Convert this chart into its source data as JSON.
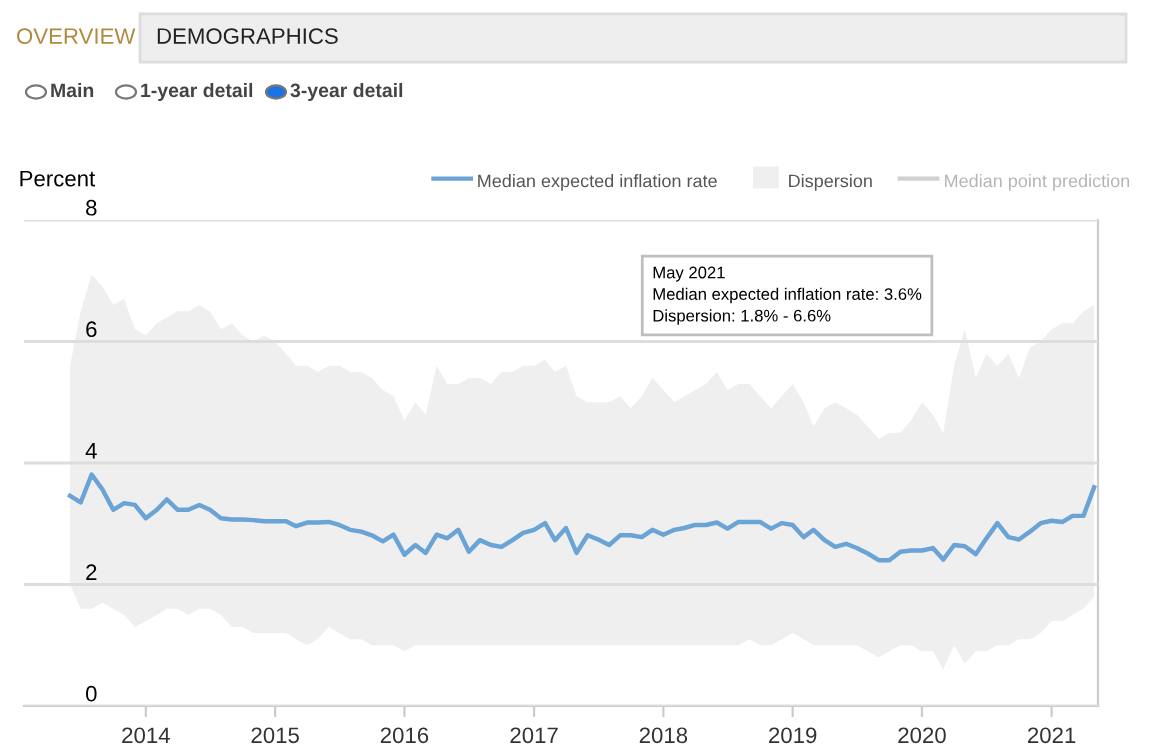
{
  "chart_data": {
    "type": "line",
    "ylabel": "Percent",
    "x": [
      "2013-06",
      "2013-07",
      "2013-08",
      "2013-09",
      "2013-10",
      "2013-11",
      "2013-12",
      "2014-01",
      "2014-02",
      "2014-03",
      "2014-04",
      "2014-05",
      "2014-06",
      "2014-07",
      "2014-08",
      "2014-09",
      "2014-10",
      "2014-11",
      "2014-12",
      "2015-01",
      "2015-02",
      "2015-03",
      "2015-04",
      "2015-05",
      "2015-06",
      "2015-07",
      "2015-08",
      "2015-09",
      "2015-10",
      "2015-11",
      "2015-12",
      "2016-01",
      "2016-02",
      "2016-03",
      "2016-04",
      "2016-05",
      "2016-06",
      "2016-07",
      "2016-08",
      "2016-09",
      "2016-10",
      "2016-11",
      "2016-12",
      "2017-01",
      "2017-02",
      "2017-03",
      "2017-04",
      "2017-05",
      "2017-06",
      "2017-07",
      "2017-08",
      "2017-09",
      "2017-10",
      "2017-11",
      "2017-12",
      "2018-01",
      "2018-02",
      "2018-03",
      "2018-04",
      "2018-05",
      "2018-06",
      "2018-07",
      "2018-08",
      "2018-09",
      "2018-10",
      "2018-11",
      "2018-12",
      "2019-01",
      "2019-02",
      "2019-03",
      "2019-04",
      "2019-05",
      "2019-06",
      "2019-07",
      "2019-08",
      "2019-09",
      "2019-10",
      "2019-11",
      "2019-12",
      "2020-01",
      "2020-02",
      "2020-03",
      "2020-04",
      "2020-05",
      "2020-06",
      "2020-07",
      "2020-08",
      "2020-09",
      "2020-10",
      "2020-11",
      "2020-12",
      "2021-01",
      "2021-02",
      "2021-03",
      "2021-04",
      "2021-05"
    ],
    "series": [
      {
        "name": "Median expected inflation rate",
        "color": "#6aa3d5",
        "lower": [
          2.0,
          1.6,
          1.6,
          1.7,
          1.6,
          1.5,
          1.3,
          1.4,
          1.5,
          1.6,
          1.6,
          1.5,
          1.6,
          1.6,
          1.5,
          1.3,
          1.3,
          1.2,
          1.2,
          1.2,
          1.2,
          1.1,
          1.0,
          1.1,
          1.3,
          1.2,
          1.1,
          1.1,
          1.0,
          1.0,
          1.0,
          0.9,
          1.0,
          1.0,
          1.0,
          1.0,
          1.0,
          1.0,
          1.0,
          1.0,
          1.0,
          1.0,
          1.0,
          1.0,
          1.0,
          1.0,
          1.0,
          1.0,
          1.0,
          1.0,
          1.0,
          1.0,
          1.0,
          1.0,
          1.0,
          1.0,
          1.0,
          1.0,
          1.0,
          1.0,
          1.0,
          1.0,
          1.0,
          1.1,
          1.0,
          1.0,
          1.1,
          1.2,
          1.1,
          1.0,
          1.0,
          1.0,
          1.0,
          1.0,
          0.9,
          0.8,
          0.9,
          1.0,
          1.0,
          0.9,
          0.9,
          0.6,
          1.0,
          0.7,
          0.9,
          0.9,
          1.0,
          1.0,
          1.1,
          1.1,
          1.2,
          1.4,
          1.4,
          1.5,
          1.6,
          1.8
        ],
        "upper": [
          5.6,
          6.5,
          7.1,
          6.9,
          6.6,
          6.7,
          6.2,
          6.1,
          6.3,
          6.4,
          6.5,
          6.5,
          6.6,
          6.5,
          6.2,
          6.3,
          6.1,
          6.0,
          6.1,
          6.0,
          5.8,
          5.6,
          5.6,
          5.5,
          5.6,
          5.6,
          5.5,
          5.5,
          5.4,
          5.2,
          5.1,
          4.7,
          5.0,
          4.8,
          5.6,
          5.3,
          5.3,
          5.4,
          5.4,
          5.3,
          5.5,
          5.5,
          5.6,
          5.6,
          5.7,
          5.5,
          5.6,
          5.1,
          5.0,
          5.0,
          5.0,
          5.1,
          4.9,
          5.1,
          5.4,
          5.2,
          5.0,
          5.1,
          5.2,
          5.3,
          5.5,
          5.2,
          5.3,
          5.3,
          5.1,
          4.9,
          5.1,
          5.3,
          5.0,
          4.6,
          4.9,
          5.0,
          4.9,
          4.8,
          4.6,
          4.4,
          4.5,
          4.5,
          4.7,
          5.0,
          4.8,
          4.5,
          5.6,
          6.2,
          5.4,
          5.8,
          5.6,
          5.8,
          5.4,
          5.9,
          6.0,
          6.2,
          6.3,
          6.3,
          6.5,
          6.6
        ],
        "values": [
          3.46,
          3.35,
          3.81,
          3.56,
          3.23,
          3.34,
          3.31,
          3.09,
          3.23,
          3.4,
          3.23,
          3.23,
          3.31,
          3.23,
          3.09,
          3.07,
          3.07,
          3.06,
          3.04,
          3.04,
          3.04,
          2.96,
          3.02,
          3.02,
          3.03,
          2.98,
          2.9,
          2.87,
          2.81,
          2.71,
          2.82,
          2.49,
          2.65,
          2.52,
          2.82,
          2.76,
          2.9,
          2.54,
          2.73,
          2.65,
          2.62,
          2.73,
          2.85,
          2.9,
          3.01,
          2.73,
          2.93,
          2.52,
          2.81,
          2.74,
          2.65,
          2.81,
          2.81,
          2.78,
          2.9,
          2.82,
          2.9,
          2.93,
          2.98,
          2.98,
          3.02,
          2.92,
          3.03,
          3.03,
          3.03,
          2.92,
          3.01,
          2.98,
          2.78,
          2.9,
          2.73,
          2.62,
          2.67,
          2.6,
          2.51,
          2.4,
          2.4,
          2.54,
          2.56,
          2.56,
          2.6,
          2.41,
          2.65,
          2.63,
          2.5,
          2.76,
          3.01,
          2.78,
          2.74,
          2.87,
          3.01,
          3.05,
          3.03,
          3.13,
          3.13,
          3.6
        ]
      }
    ],
    "xlim": [
      "2013-01-22",
      "2021-05-12"
    ],
    "xticks": [
      {
        "value": "2014-01-01",
        "label": "2014"
      },
      {
        "value": "2015-01-01",
        "label": "2015"
      },
      {
        "value": "2016-01-01",
        "label": "2016"
      },
      {
        "value": "2017-01-01",
        "label": "2017"
      },
      {
        "value": "2018-01-01",
        "label": "2018"
      },
      {
        "value": "2019-01-01",
        "label": "2019"
      },
      {
        "value": "2020-01-01",
        "label": "2020"
      },
      {
        "value": "2021-01-01",
        "label": "2021"
      }
    ],
    "ylim": [
      0,
      8
    ],
    "yticks": [
      0,
      2,
      4,
      6,
      8
    ],
    "grid": "y",
    "legend": "top right",
    "marker": "none",
    "line_style": "solid",
    "annotations": [
      "OVERVIEW",
      "DEMOGRAPHICS",
      "Main",
      "1-year detail",
      "3-year detail",
      "May 2021\nMedian expected inflation rate: 3.6%\nDispersion: 1.8% - 6.6%",
      "Dispersion",
      "Median point prediction"
    ]
  }
}
